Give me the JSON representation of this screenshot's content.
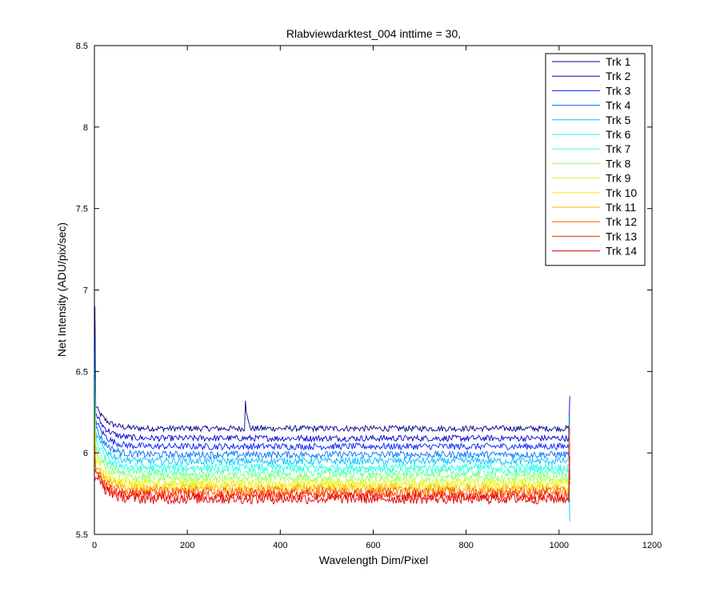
{
  "chart_data": {
    "type": "line",
    "title": "Rlabviewdarktest_004 inttime = 30,",
    "xlabel": "Wavelength Dim/Pixel",
    "ylabel": "Net Intensity (ADU/pix/sec)",
    "xlim": [
      0,
      1200
    ],
    "ylim": [
      5.5,
      8.5
    ],
    "xticks": [
      "0",
      "200",
      "400",
      "600",
      "800",
      "1000",
      "1200"
    ],
    "yticks": [
      "5.5",
      "6",
      "6.5",
      "7",
      "7.5",
      "8",
      "8.5"
    ],
    "grid": false,
    "legend_position": "top-right",
    "x_range_data": [
      1,
      1024
    ],
    "series": [
      {
        "name": "Trk 1",
        "color": "#00008f",
        "level": 6.15,
        "start": 6.3,
        "spike": {
          "x": 324,
          "peak": 6.58
        }
      },
      {
        "name": "Trk 2",
        "color": "#0000cf",
        "level": 6.09,
        "start": 6.26
      },
      {
        "name": "Trk 3",
        "color": "#0020ff",
        "level": 6.04,
        "start": 6.22
      },
      {
        "name": "Trk 4",
        "color": "#0070ff",
        "level": 5.99,
        "start": 6.18
      },
      {
        "name": "Trk 5",
        "color": "#00c0ff",
        "level": 5.95,
        "start": 6.14
      },
      {
        "name": "Trk 6",
        "color": "#10ffef",
        "level": 5.91,
        "start": 6.1
      },
      {
        "name": "Trk 7",
        "color": "#50ffaf",
        "level": 5.88,
        "start": 6.07
      },
      {
        "name": "Trk 8",
        "color": "#90ff6f",
        "level": 5.85,
        "start": 6.04
      },
      {
        "name": "Trk 9",
        "color": "#cfff30",
        "level": 5.82,
        "start": 6.01
      },
      {
        "name": "Trk 10",
        "color": "#ffef00",
        "level": 5.8,
        "start": 5.98
      },
      {
        "name": "Trk 11",
        "color": "#ffb000",
        "level": 5.78,
        "start": 5.95
      },
      {
        "name": "Trk 12",
        "color": "#ff6000",
        "level": 5.76,
        "start": 5.92
      },
      {
        "name": "Trk 13",
        "color": "#ff2000",
        "level": 5.74,
        "start": 5.9
      },
      {
        "name": "Trk 14",
        "color": "#df0000",
        "level": 5.72,
        "start": 5.88
      }
    ]
  }
}
